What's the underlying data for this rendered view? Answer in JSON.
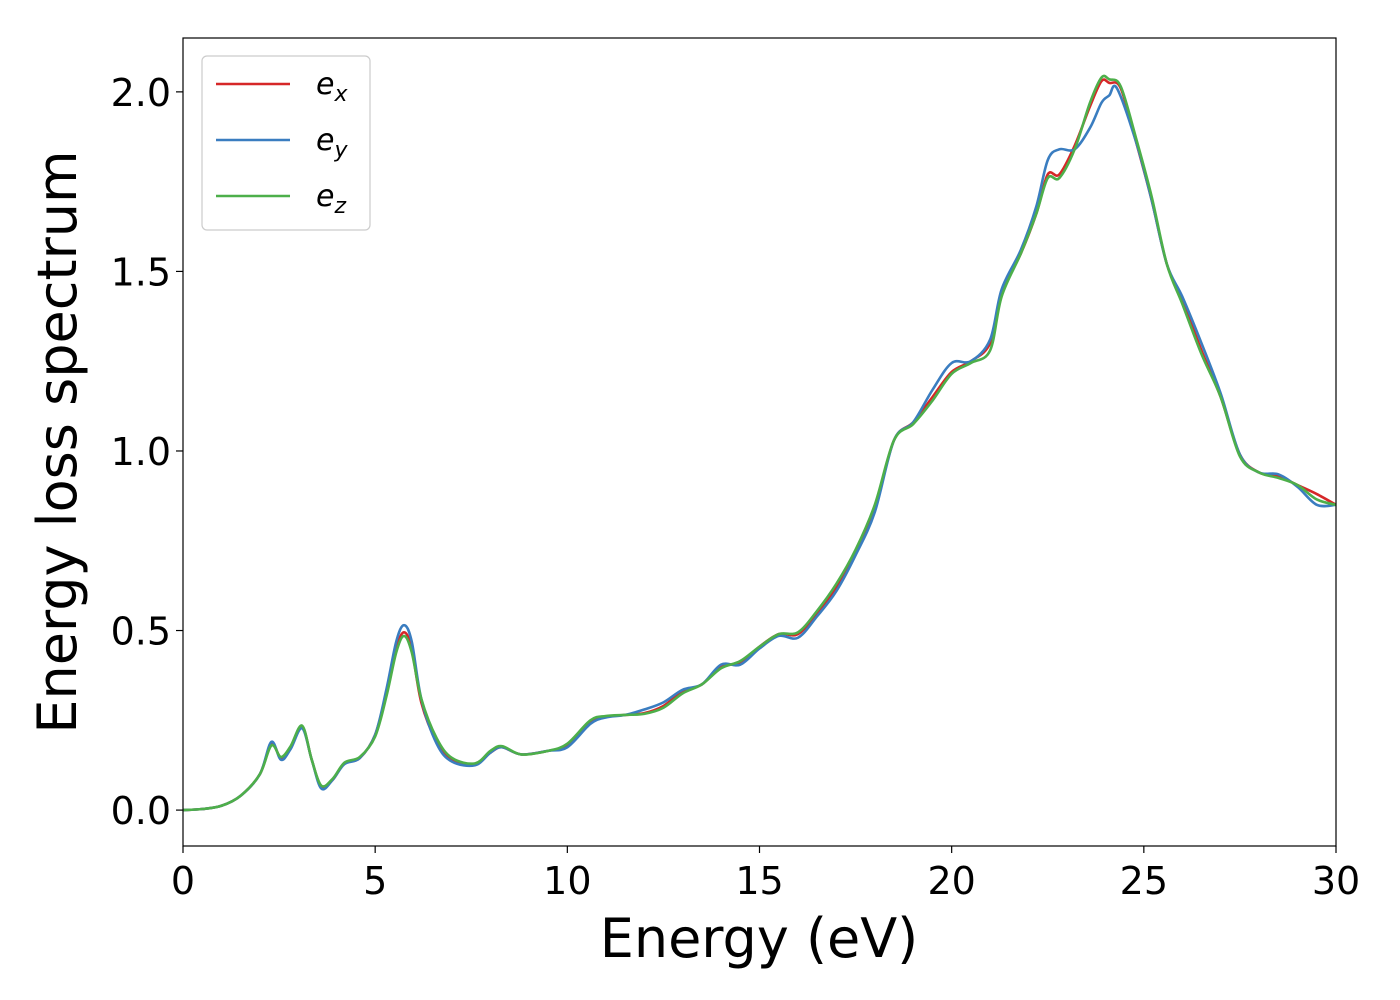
{
  "chart_data": {
    "type": "line",
    "xlabel": "Energy (eV)",
    "ylabel": "Energy loss spectrum",
    "xlim": [
      0,
      30
    ],
    "ylim": [
      -0.1,
      2.15
    ],
    "xticks": [
      0,
      5,
      10,
      15,
      20,
      25,
      30
    ],
    "xtick_labels": [
      "0",
      "5",
      "10",
      "15",
      "20",
      "25",
      "30"
    ],
    "yticks": [
      0.0,
      0.5,
      1.0,
      1.5,
      2.0
    ],
    "ytick_labels": [
      "0.0",
      "0.5",
      "1.0",
      "1.5",
      "2.0"
    ],
    "grid": false,
    "legend_position": "top-left",
    "series": [
      {
        "name_base": "e",
        "name_sub": "x",
        "color": "#d62728",
        "points": [
          [
            0,
            0.0
          ],
          [
            0.5,
            0.003
          ],
          [
            1.0,
            0.012
          ],
          [
            1.5,
            0.04
          ],
          [
            2.0,
            0.1
          ],
          [
            2.3,
            0.185
          ],
          [
            2.55,
            0.145
          ],
          [
            2.8,
            0.175
          ],
          [
            3.1,
            0.232
          ],
          [
            3.35,
            0.14
          ],
          [
            3.6,
            0.065
          ],
          [
            3.9,
            0.085
          ],
          [
            4.2,
            0.13
          ],
          [
            4.6,
            0.145
          ],
          [
            5.0,
            0.21
          ],
          [
            5.3,
            0.33
          ],
          [
            5.55,
            0.45
          ],
          [
            5.75,
            0.495
          ],
          [
            5.95,
            0.45
          ],
          [
            6.2,
            0.3
          ],
          [
            6.6,
            0.19
          ],
          [
            7.0,
            0.14
          ],
          [
            7.6,
            0.128
          ],
          [
            8.0,
            0.16
          ],
          [
            8.3,
            0.175
          ],
          [
            8.8,
            0.155
          ],
          [
            9.5,
            0.165
          ],
          [
            10.0,
            0.18
          ],
          [
            10.6,
            0.245
          ],
          [
            11.0,
            0.26
          ],
          [
            11.5,
            0.265
          ],
          [
            12.0,
            0.27
          ],
          [
            12.5,
            0.29
          ],
          [
            13.0,
            0.33
          ],
          [
            13.5,
            0.35
          ],
          [
            14.0,
            0.4
          ],
          [
            14.5,
            0.41
          ],
          [
            15.0,
            0.455
          ],
          [
            15.5,
            0.49
          ],
          [
            16.0,
            0.49
          ],
          [
            16.5,
            0.55
          ],
          [
            17.0,
            0.62
          ],
          [
            17.5,
            0.72
          ],
          [
            18.0,
            0.84
          ],
          [
            18.5,
            1.03
          ],
          [
            19.0,
            1.08
          ],
          [
            19.5,
            1.15
          ],
          [
            20.0,
            1.22
          ],
          [
            20.5,
            1.25
          ],
          [
            21.0,
            1.3
          ],
          [
            21.3,
            1.44
          ],
          [
            21.8,
            1.55
          ],
          [
            22.2,
            1.66
          ],
          [
            22.5,
            1.77
          ],
          [
            22.8,
            1.77
          ],
          [
            23.2,
            1.85
          ],
          [
            23.6,
            1.96
          ],
          [
            23.9,
            2.03
          ],
          [
            24.1,
            2.025
          ],
          [
            24.4,
            2.01
          ],
          [
            24.8,
            1.86
          ],
          [
            25.2,
            1.7
          ],
          [
            25.6,
            1.52
          ],
          [
            26.0,
            1.42
          ],
          [
            26.5,
            1.28
          ],
          [
            27.0,
            1.15
          ],
          [
            27.5,
            0.99
          ],
          [
            28.0,
            0.94
          ],
          [
            28.5,
            0.93
          ],
          [
            29.0,
            0.905
          ],
          [
            29.5,
            0.88
          ],
          [
            30.0,
            0.85
          ]
        ]
      },
      {
        "name_base": "e",
        "name_sub": "y",
        "color": "#3a7dc0",
        "points": [
          [
            0,
            0.0
          ],
          [
            0.5,
            0.003
          ],
          [
            1.0,
            0.012
          ],
          [
            1.5,
            0.04
          ],
          [
            2.0,
            0.1
          ],
          [
            2.3,
            0.19
          ],
          [
            2.55,
            0.14
          ],
          [
            2.8,
            0.17
          ],
          [
            3.1,
            0.228
          ],
          [
            3.35,
            0.14
          ],
          [
            3.6,
            0.06
          ],
          [
            3.9,
            0.085
          ],
          [
            4.2,
            0.128
          ],
          [
            4.6,
            0.145
          ],
          [
            5.0,
            0.21
          ],
          [
            5.3,
            0.34
          ],
          [
            5.55,
            0.47
          ],
          [
            5.75,
            0.515
          ],
          [
            5.95,
            0.47
          ],
          [
            6.2,
            0.31
          ],
          [
            6.6,
            0.185
          ],
          [
            7.0,
            0.135
          ],
          [
            7.6,
            0.125
          ],
          [
            8.0,
            0.16
          ],
          [
            8.3,
            0.175
          ],
          [
            8.8,
            0.155
          ],
          [
            9.5,
            0.165
          ],
          [
            10.0,
            0.175
          ],
          [
            10.6,
            0.24
          ],
          [
            11.0,
            0.258
          ],
          [
            11.5,
            0.265
          ],
          [
            12.0,
            0.28
          ],
          [
            12.5,
            0.3
          ],
          [
            13.0,
            0.335
          ],
          [
            13.5,
            0.35
          ],
          [
            14.0,
            0.405
          ],
          [
            14.5,
            0.405
          ],
          [
            15.0,
            0.45
          ],
          [
            15.5,
            0.485
          ],
          [
            16.0,
            0.48
          ],
          [
            16.5,
            0.54
          ],
          [
            17.0,
            0.61
          ],
          [
            17.5,
            0.71
          ],
          [
            18.0,
            0.83
          ],
          [
            18.5,
            1.03
          ],
          [
            19.0,
            1.08
          ],
          [
            19.5,
            1.17
          ],
          [
            20.0,
            1.245
          ],
          [
            20.5,
            1.25
          ],
          [
            21.0,
            1.31
          ],
          [
            21.3,
            1.45
          ],
          [
            21.8,
            1.56
          ],
          [
            22.2,
            1.68
          ],
          [
            22.5,
            1.81
          ],
          [
            22.8,
            1.84
          ],
          [
            23.2,
            1.84
          ],
          [
            23.6,
            1.9
          ],
          [
            23.9,
            1.97
          ],
          [
            24.1,
            1.99
          ],
          [
            24.3,
            2.01
          ],
          [
            24.8,
            1.86
          ],
          [
            25.2,
            1.7
          ],
          [
            25.6,
            1.52
          ],
          [
            26.0,
            1.43
          ],
          [
            26.5,
            1.3
          ],
          [
            27.0,
            1.16
          ],
          [
            27.5,
            0.99
          ],
          [
            28.0,
            0.94
          ],
          [
            28.5,
            0.935
          ],
          [
            29.0,
            0.9
          ],
          [
            29.5,
            0.85
          ],
          [
            30.0,
            0.85
          ]
        ]
      },
      {
        "name_base": "e",
        "name_sub": "z",
        "color": "#4daf4a",
        "points": [
          [
            0,
            0.0
          ],
          [
            0.5,
            0.003
          ],
          [
            1.0,
            0.012
          ],
          [
            1.5,
            0.04
          ],
          [
            2.0,
            0.1
          ],
          [
            2.3,
            0.18
          ],
          [
            2.55,
            0.148
          ],
          [
            2.8,
            0.178
          ],
          [
            3.1,
            0.235
          ],
          [
            3.35,
            0.14
          ],
          [
            3.6,
            0.068
          ],
          [
            3.9,
            0.088
          ],
          [
            4.2,
            0.132
          ],
          [
            4.6,
            0.148
          ],
          [
            5.0,
            0.205
          ],
          [
            5.3,
            0.32
          ],
          [
            5.55,
            0.44
          ],
          [
            5.75,
            0.485
          ],
          [
            5.95,
            0.44
          ],
          [
            6.2,
            0.31
          ],
          [
            6.6,
            0.2
          ],
          [
            7.0,
            0.145
          ],
          [
            7.6,
            0.13
          ],
          [
            8.0,
            0.165
          ],
          [
            8.3,
            0.178
          ],
          [
            8.8,
            0.155
          ],
          [
            9.5,
            0.165
          ],
          [
            10.0,
            0.185
          ],
          [
            10.6,
            0.25
          ],
          [
            11.0,
            0.262
          ],
          [
            11.5,
            0.265
          ],
          [
            12.0,
            0.268
          ],
          [
            12.5,
            0.285
          ],
          [
            13.0,
            0.325
          ],
          [
            13.5,
            0.35
          ],
          [
            14.0,
            0.395
          ],
          [
            14.5,
            0.415
          ],
          [
            15.0,
            0.455
          ],
          [
            15.5,
            0.49
          ],
          [
            16.0,
            0.495
          ],
          [
            16.5,
            0.555
          ],
          [
            17.0,
            0.63
          ],
          [
            17.5,
            0.725
          ],
          [
            18.0,
            0.85
          ],
          [
            18.5,
            1.03
          ],
          [
            19.0,
            1.075
          ],
          [
            19.5,
            1.14
          ],
          [
            20.0,
            1.215
          ],
          [
            20.5,
            1.245
          ],
          [
            21.0,
            1.28
          ],
          [
            21.3,
            1.43
          ],
          [
            21.8,
            1.55
          ],
          [
            22.2,
            1.66
          ],
          [
            22.5,
            1.76
          ],
          [
            22.8,
            1.76
          ],
          [
            23.2,
            1.84
          ],
          [
            23.6,
            1.97
          ],
          [
            23.9,
            2.04
          ],
          [
            24.1,
            2.035
          ],
          [
            24.4,
            2.015
          ],
          [
            24.8,
            1.87
          ],
          [
            25.2,
            1.71
          ],
          [
            25.6,
            1.52
          ],
          [
            26.0,
            1.41
          ],
          [
            26.5,
            1.27
          ],
          [
            27.0,
            1.15
          ],
          [
            27.5,
            0.985
          ],
          [
            28.0,
            0.94
          ],
          [
            28.5,
            0.925
          ],
          [
            29.0,
            0.905
          ],
          [
            29.5,
            0.865
          ],
          [
            30.0,
            0.85
          ]
        ]
      }
    ]
  }
}
